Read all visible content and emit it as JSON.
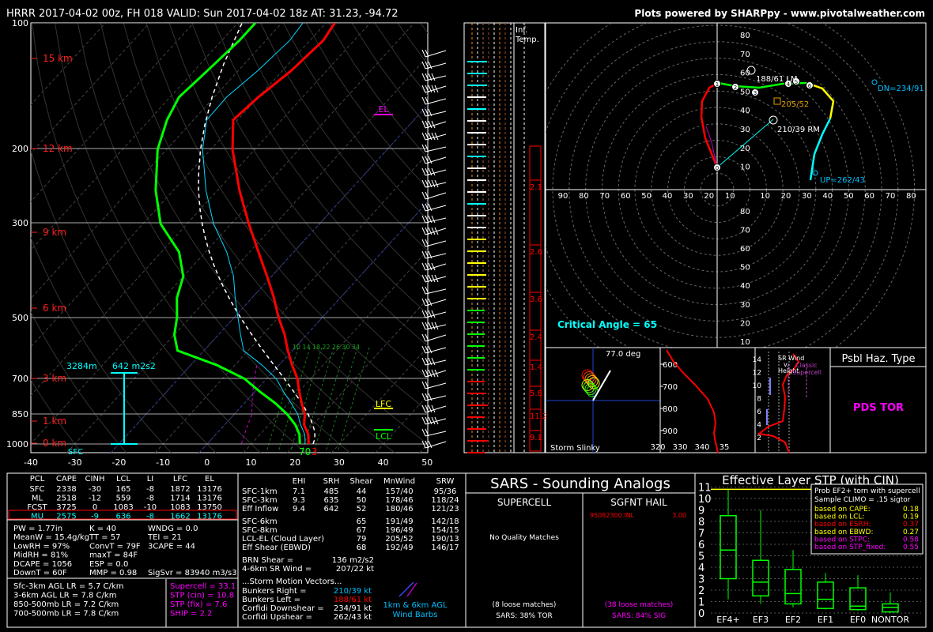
{
  "header": {
    "title": "HRRR 2017-04-02 00z, FH 018   VALID: Sun 2017-04-02 18z   AT: 31.23, -94.72",
    "credit": "Plots powered by SHARPpy - www.pivotalweather.com"
  },
  "skewt": {
    "pressure_ticks": [
      "100",
      "200",
      "300",
      "500",
      "700",
      "850",
      "1000"
    ],
    "height_labels": [
      "15 km",
      "12 km",
      "9 km",
      "6 km",
      "3 km",
      "1 km",
      "0 km"
    ],
    "temp_ticks": [
      "-40",
      "-30",
      "-20",
      "-10",
      "0",
      "10",
      "20",
      "30",
      "40",
      "50"
    ],
    "el_label": "EL",
    "lfc_label": "LFC",
    "lcl_label": "LCL",
    "srh_depth": "3284m",
    "srh_value": "642 m2s2",
    "sfc_label": "SFC",
    "sfc_temp": "70",
    "sfc_temp2": "3",
    "mix_ratio_labels": [
      "10",
      "14",
      "18",
      "22",
      "26",
      "30",
      "34"
    ]
  },
  "chart_data": {
    "type": "line",
    "title": "",
    "xlabel": "",
    "ylabel": "",
    "ylim": [
      1000,
      100
    ],
    "xlim": [
      -40,
      50
    ],
    "series": [
      {
        "p": [
          1000,
          950,
          900,
          850,
          800,
          750,
          700,
          650,
          600,
          550,
          500,
          450,
          400,
          350,
          300,
          250,
          200,
          170,
          150,
          130,
          110,
          100
        ],
        "values": [
          23,
          21,
          18,
          16,
          13,
          10,
          7,
          3,
          -1,
          -5,
          -10,
          -15,
          -21,
          -28,
          -36,
          -45,
          -55,
          -61,
          -60,
          -58,
          -57,
          -58
        ]
      },
      {
        "p": [
          1000,
          950,
          900,
          850,
          800,
          750,
          700,
          650,
          600,
          550,
          500,
          450,
          400,
          350,
          300,
          250,
          200,
          170,
          150,
          130,
          110,
          100
        ],
        "values": [
          21,
          19,
          16,
          12,
          7,
          1,
          -5,
          -14,
          -26,
          -30,
          -33,
          -37,
          -40,
          -46,
          -56,
          -64,
          -72,
          -76,
          -78,
          -77,
          -76,
          -76
        ]
      }
    ]
  },
  "misc_panels": {
    "inf_temp": "Inf.\nTemp.",
    "inf_line1": "Inf.",
    "inf_line2": "Temp.",
    "bar_values": [
      "2.1",
      "2.6",
      "3.6",
      "2.4",
      "1.4",
      "5.8",
      "11.2",
      "9.1"
    ]
  },
  "hodograph": {
    "rings": [
      "80",
      "70",
      "60",
      "50",
      "40",
      "30",
      "20",
      "10"
    ],
    "x_ticks": [
      "90",
      "80",
      "70",
      "60",
      "50",
      "40",
      "30",
      "20",
      "10",
      "10",
      "20",
      "30",
      "40",
      "50",
      "60",
      "70",
      "80",
      "90"
    ],
    "lm": "188/61 LM",
    "mean": "205/52",
    "rm": "210/39 RM",
    "dn": "DN=234/91",
    "up": "UP=262/43",
    "critical_angle": "Critical Angle = 65",
    "points": [
      "0",
      "1",
      "2",
      "3",
      "4",
      "5",
      "6"
    ]
  },
  "slinky": {
    "deg": "77.0 deg",
    "label": "Storm Slinky"
  },
  "theta_panel": {
    "ticks": [
      "600",
      "700",
      "800",
      "900"
    ],
    "xticks": [
      "320",
      "330",
      "340",
      "35"
    ]
  },
  "sr_panel": {
    "title_a": "SR Wind",
    "title_b": "v.",
    "title_c": "Height",
    "classic": "Classic",
    "supercell": "Supercell",
    "yticks": [
      "14",
      "12",
      "10",
      "8",
      "6",
      "4",
      "2"
    ]
  },
  "hazard": {
    "title": "Psbl Haz. Type",
    "value": "PDS TOR"
  },
  "parcels": {
    "headers": [
      "PCL",
      "CAPE",
      "CINH",
      "LCL",
      "LI",
      "LFC",
      "EL"
    ],
    "rows": [
      [
        "SFC",
        "2338",
        "-30",
        "165",
        "-8",
        "1872",
        "13176"
      ],
      [
        "ML",
        "2518",
        "-12",
        "559",
        "-8",
        "1714",
        "13176"
      ],
      [
        "FCST",
        "3725",
        "0",
        "1083",
        "-10",
        "1083",
        "13750"
      ],
      [
        "MU",
        "2575",
        "-9",
        "636",
        "-8",
        "1662",
        "13176"
      ]
    ]
  },
  "thermo": {
    "col1": [
      "PW = 1.77in",
      "MeanW = 15.4g/kg",
      "LowRH = 97%",
      "MidRH = 81%",
      "DCAPE = 1056",
      "DownT = 60F"
    ],
    "col2": [
      "K = 40",
      "TT = 57",
      "ConvT = 79F",
      "maxT = 84F",
      "ESP = 0.0",
      "MMP = 0.98"
    ],
    "col3": [
      "WNDG = 0.0",
      "TEI = 21",
      "3CAPE = 44",
      "",
      "",
      "SigSvr = 83940 m3/s3"
    ],
    "lapse": [
      "Sfc-3km AGL LR = 5.7 C/km",
      "3-6km AGL LR = 7.8 C/km",
      "850-500mb LR = 7.2 C/km",
      "700-500mb LR = 7.8 C/km"
    ],
    "composite": [
      "Supercell = 33.1",
      "STP (cin) = 10.8",
      "STP (fix) = 7.6",
      "SHIP = 2.2"
    ]
  },
  "kinematics": {
    "headers": [
      "EHI",
      "SRH",
      "Shear",
      "MnWind",
      "SRW"
    ],
    "rows": [
      [
        "SFC-1km",
        "7.1",
        "485",
        "44",
        "157/40",
        "95/36"
      ],
      [
        "SFC-3km",
        "9.3",
        "635",
        "50",
        "178/46",
        "118/24"
      ],
      [
        "Eff Inflow",
        "9.4",
        "642",
        "52",
        "180/46",
        "121/23"
      ],
      [
        "SFC-6km",
        "",
        "",
        "65",
        "191/49",
        "142/18"
      ],
      [
        "SFC-8km",
        "",
        "",
        "67",
        "196/49",
        "154/15"
      ],
      [
        "LCL-EL (Cloud Layer)",
        "",
        "",
        "79",
        "205/52",
        "190/13"
      ],
      [
        "Eff Shear (EBWD)",
        "",
        "",
        "68",
        "192/49",
        "146/17"
      ]
    ],
    "brn_label": "BRN Shear =",
    "brn_value": "136 m2/s2",
    "sr46_label": "4-6km SR Wind =",
    "sr46_value": "207/22 kt",
    "vectors_title": "...Storm Motion Vectors...",
    "vectors": [
      [
        "Bunkers Right =",
        "210/39 kt"
      ],
      [
        "Bunkers Left =",
        "188/61 kt"
      ],
      [
        "Corfidi Downshear =",
        "234/91 kt"
      ],
      [
        "Corfidi Upshear =",
        "262/43 kt"
      ]
    ],
    "barbs_a": "1km & 6km AGL",
    "barbs_b": "Wind Barbs"
  },
  "sars": {
    "title": "SARS - Sounding Analogs",
    "supercell": "SUPERCELL",
    "hail": "SGFNT HAIL",
    "hail_match": "95082300.INL",
    "hail_size": "3.00",
    "no_match": "No Quality Matches",
    "sc_loose": "(8 loose matches)",
    "sc_tor": "SARS: 38% TOR",
    "hail_loose": "(38 loose matches)",
    "hail_sig": "SARS: 84% SIG"
  },
  "stp": {
    "title": "Effective Layer STP (with CIN)",
    "yticks": [
      "11",
      "10",
      "9",
      "8",
      "7",
      "6",
      "5",
      "4",
      "3",
      "2",
      "1",
      "0"
    ],
    "categories": [
      "EF4+",
      "EF3",
      "EF2",
      "EF1",
      "EF0",
      "NONTOR"
    ],
    "box_title": "Prob EF2+ torn with supercell",
    "box_sub": "Sample CLIMO = .15 sigtor",
    "probs": [
      [
        "based on CAPE:",
        "0.18"
      ],
      [
        "based on LCL:",
        "0.19"
      ],
      [
        "based on ESRH:",
        "0.37"
      ],
      [
        "based on EBWD:",
        "0.27"
      ],
      [
        "based on STPC:",
        "0.58"
      ],
      [
        "based on STP_fixed:",
        "0.55"
      ]
    ]
  },
  "colors": {
    "temp": "#ff0000",
    "dew": "#00ff00",
    "accent": "#00ffff",
    "magenta": "#ff00ff",
    "yellow": "#ffff00"
  }
}
